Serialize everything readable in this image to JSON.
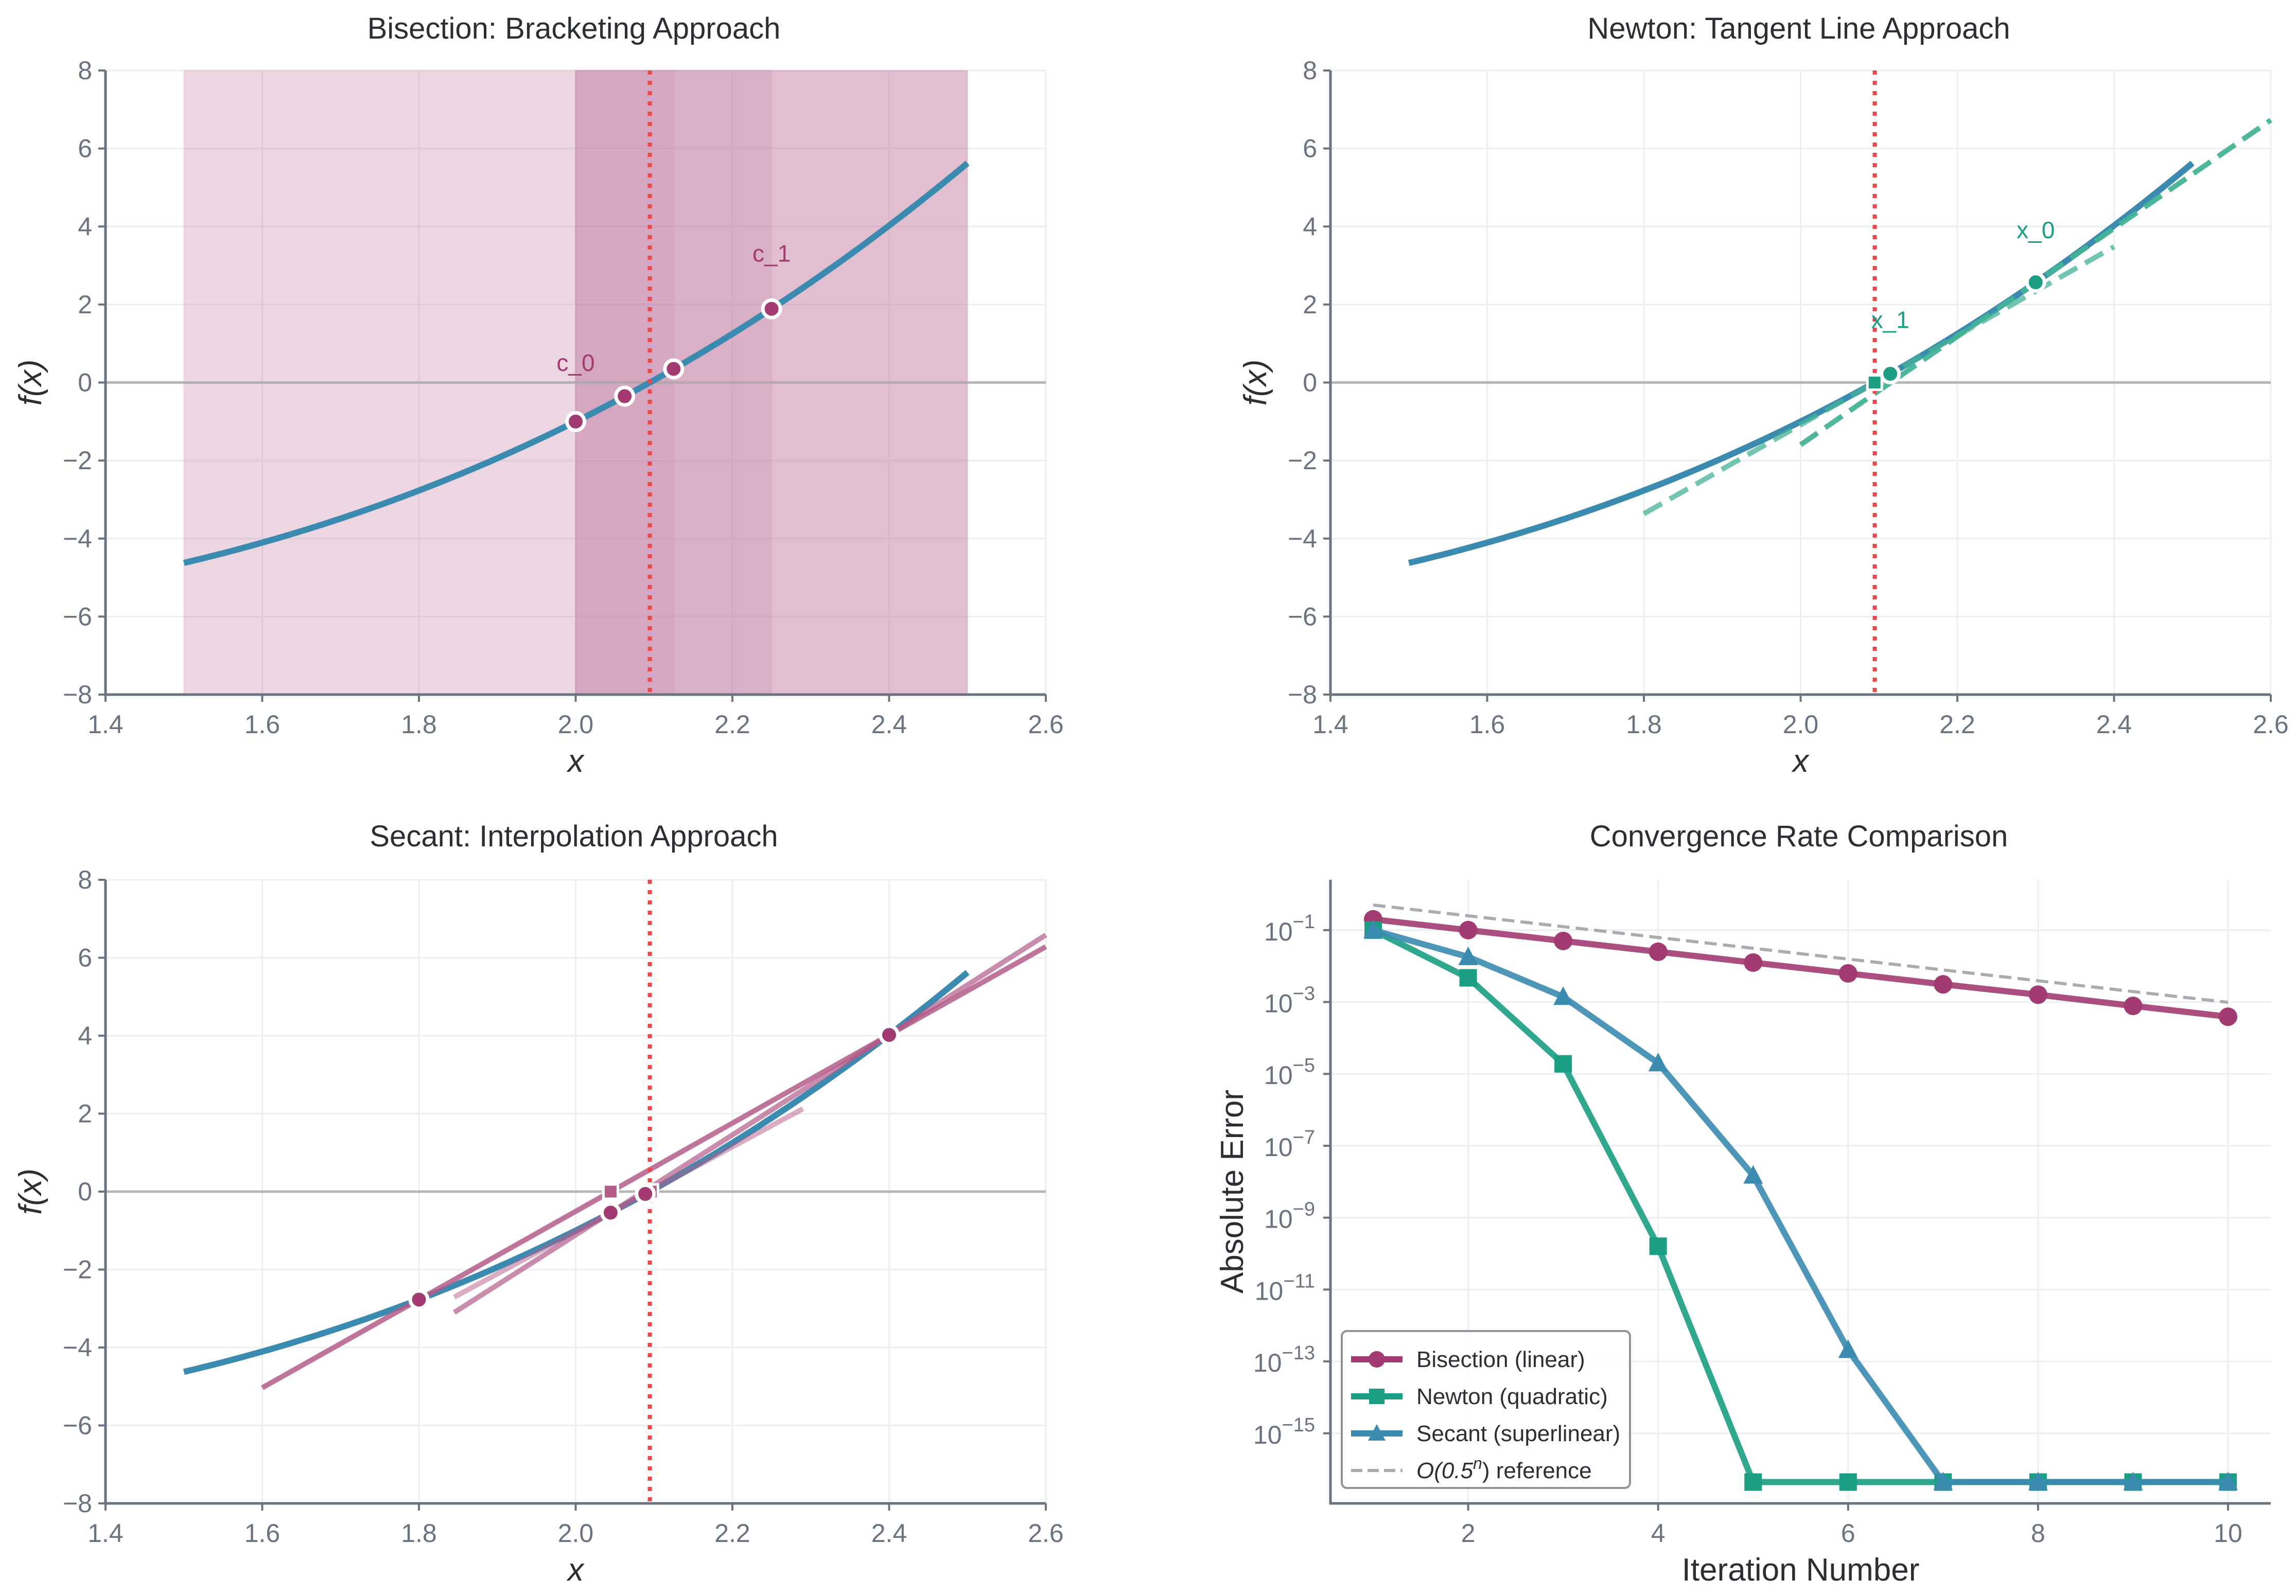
{
  "colors": {
    "function": "#3b8bb0",
    "bisection": "#a23b72",
    "bracket_fill": "#c27a9f",
    "newton": "#1a9e84",
    "newton_tangent": "#44b497",
    "secant_line": "#b45c8a",
    "root_line": "#f0464a",
    "zero_line": "#a9a9a9",
    "reference": "#a8acb1"
  },
  "function": {
    "expression": "x^3 - 2x - 5",
    "x_range": [
      1.5,
      2.5
    ],
    "root": 2.0946
  },
  "chart_data": [
    {
      "id": "bisection",
      "type": "line",
      "title": "Bisection: Bracketing Approach",
      "xlabel": "x",
      "ylabel": "f(x)",
      "xlim": [
        1.4,
        2.6
      ],
      "ylim": [
        -8,
        8
      ],
      "xticks": [
        "1.4",
        "1.6",
        "1.8",
        "2.0",
        "2.2",
        "2.4",
        "2.6"
      ],
      "yticks": [
        "−8",
        "−6",
        "−4",
        "−2",
        "0",
        "2",
        "4",
        "6",
        "8"
      ],
      "brackets": [
        [
          1.5,
          2.5
        ],
        [
          2.0,
          2.5
        ],
        [
          2.0,
          2.25
        ],
        [
          2.0,
          2.125
        ]
      ],
      "midpoints": [
        {
          "x": 2.0,
          "y": -1.0
        },
        {
          "x": 2.25,
          "y": 1.89
        },
        {
          "x": 2.125,
          "y": 0.35
        },
        {
          "x": 2.0625,
          "y": -0.35
        }
      ],
      "annotations": [
        {
          "text": "c_0",
          "x": 2.0,
          "y": 0.3
        },
        {
          "text": "c_1",
          "x": 2.25,
          "y": 3.1
        }
      ]
    },
    {
      "id": "newton",
      "type": "line",
      "title": "Newton: Tangent Line Approach",
      "xlabel": "x",
      "ylabel": "f(x)",
      "xlim": [
        1.4,
        2.6
      ],
      "ylim": [
        -8,
        8
      ],
      "xticks": [
        "1.4",
        "1.6",
        "1.8",
        "2.0",
        "2.2",
        "2.4",
        "2.6"
      ],
      "yticks": [
        "−8",
        "−6",
        "−4",
        "−2",
        "0",
        "2",
        "4",
        "6",
        "8"
      ],
      "iterates": [
        {
          "x": 2.3,
          "y": 2.57
        },
        {
          "x": 2.1144,
          "y": 0.224
        }
      ],
      "tangent_zero_points": [
        {
          "x": 2.0944,
          "y": 0
        }
      ],
      "tangents": [
        {
          "x0": 2.3,
          "from": 2.0,
          "to": 2.6
        },
        {
          "x0": 2.1144,
          "from": 1.8,
          "to": 2.4
        }
      ],
      "annotations": [
        {
          "text": "x_0",
          "x": 2.3,
          "y": 3.7
        },
        {
          "text": "x_1",
          "x": 2.1144,
          "y": 1.4
        }
      ]
    },
    {
      "id": "secant",
      "type": "line",
      "title": "Secant: Interpolation Approach",
      "xlabel": "x",
      "ylabel": "f(x)",
      "xlim": [
        1.4,
        2.6
      ],
      "ylim": [
        -8,
        8
      ],
      "xticks": [
        "1.4",
        "1.6",
        "1.8",
        "2.0",
        "2.2",
        "2.4",
        "2.6"
      ],
      "yticks": [
        "−8",
        "−6",
        "−4",
        "−2",
        "0",
        "2",
        "4",
        "6",
        "8"
      ],
      "points": [
        {
          "x": 1.8,
          "y": -2.77
        },
        {
          "x": 2.4,
          "y": 4.02
        },
        {
          "x": 2.0446,
          "y": -0.54
        },
        {
          "x": 2.0888,
          "y": -0.06
        }
      ],
      "intercepts": [
        {
          "x": 2.0446,
          "y": 0
        },
        {
          "x": 2.0958,
          "y": 0
        }
      ],
      "secants": [
        {
          "p1": [
            1.8,
            -2.77
          ],
          "p2": [
            2.4,
            4.02
          ],
          "from": 1.6,
          "to": 2.6,
          "opacity": 0.85
        },
        {
          "p1": [
            2.4,
            4.02
          ],
          "p2": [
            2.0446,
            -0.54
          ],
          "from": 1.845,
          "to": 2.6,
          "opacity": 0.7
        },
        {
          "p1": [
            2.0446,
            -0.54
          ],
          "p2": [
            2.0888,
            -0.06
          ],
          "from": 1.845,
          "to": 2.29,
          "opacity": 0.5
        }
      ]
    },
    {
      "id": "convergence",
      "type": "line",
      "title": "Convergence Rate Comparison",
      "xlabel": "Iteration Number",
      "ylabel": "Absolute Error",
      "yscale": "log",
      "xlim": [
        0.55,
        10.45
      ],
      "ylim_log10": [
        -16.95,
        0.4
      ],
      "xticks": [
        "2",
        "4",
        "6",
        "8",
        "10"
      ],
      "yticks": [
        {
          "base": "10",
          "exp": "−1"
        },
        {
          "base": "10",
          "exp": "−3"
        },
        {
          "base": "10",
          "exp": "−5"
        },
        {
          "base": "10",
          "exp": "−7"
        },
        {
          "base": "10",
          "exp": "−9"
        },
        {
          "base": "10",
          "exp": "−11"
        },
        {
          "base": "10",
          "exp": "−13"
        },
        {
          "base": "10",
          "exp": "−15"
        }
      ],
      "x": [
        1,
        2,
        3,
        4,
        5,
        6,
        7,
        8,
        9,
        10
      ],
      "series": [
        {
          "name": "Bisection (linear)",
          "marker": "circle",
          "values": [
            0.2,
            0.1,
            0.05,
            0.025,
            0.0125,
            0.00625,
            0.0031,
            0.0016,
            0.00078,
            0.00039
          ]
        },
        {
          "name": "Newton (quadratic)",
          "marker": "square",
          "values": [
            0.1,
            0.0047,
            1.9e-05,
            1.6e-10,
            4.4e-17,
            4.4e-17,
            4.4e-17,
            4.4e-17,
            4.4e-17,
            4.4e-17
          ]
        },
        {
          "name": "Secant (superlinear)",
          "marker": "triangle",
          "values": [
            0.1,
            0.018,
            0.0014,
            2e-05,
            1.5e-08,
            2.1e-13,
            4.4e-17,
            4.4e-17,
            4.4e-17,
            4.4e-17
          ]
        },
        {
          "name": "O(0.5^n) reference",
          "marker": "none",
          "dashed": true,
          "values": [
            0.5,
            0.25,
            0.125,
            0.0625,
            0.03125,
            0.015625,
            0.0078,
            0.0039,
            0.00195,
            0.00098
          ]
        }
      ],
      "legend": {
        "location": "lower-left",
        "entries": [
          "Bisection (linear)",
          "Newton (quadratic)",
          "Secant (superlinear)",
          "O(0.5",
          ") reference"
        ]
      }
    }
  ]
}
